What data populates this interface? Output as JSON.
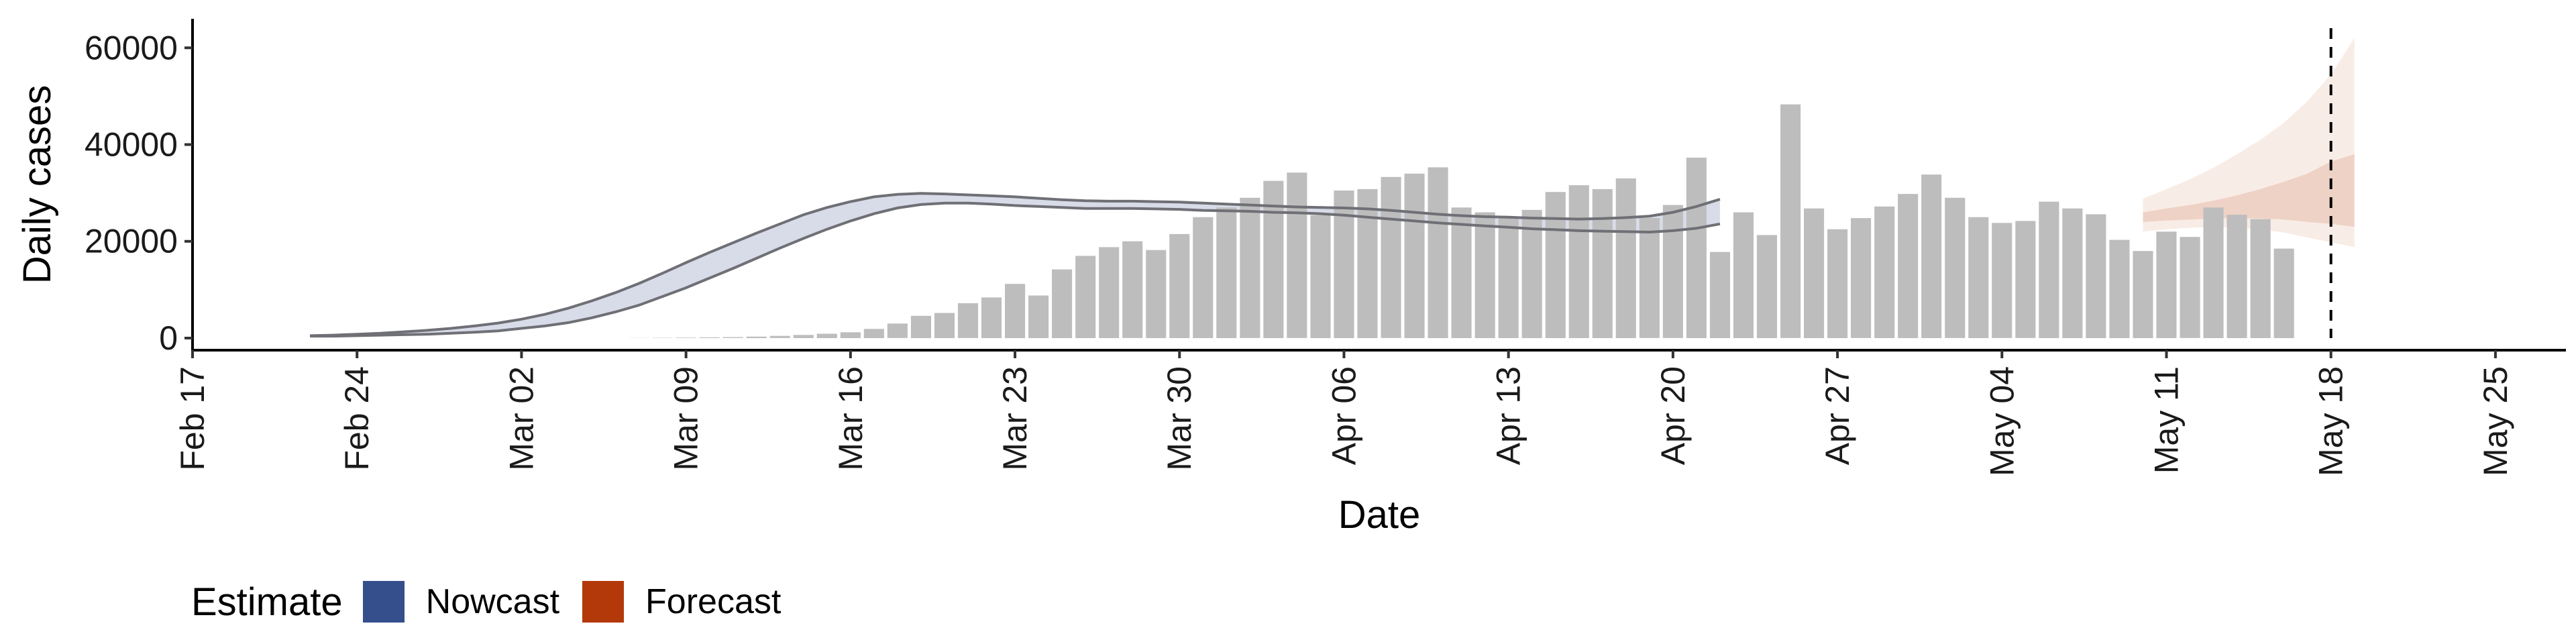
{
  "chart_data": {
    "type": "bar",
    "xlabel": "Date",
    "ylabel": "Daily cases",
    "xlim": [
      "2020-02-17",
      "2020-05-28"
    ],
    "ylim": [
      -2500,
      66000
    ],
    "x_ticks": [
      "Feb 17",
      "Feb 24",
      "Mar 02",
      "Mar 09",
      "Mar 16",
      "Mar 23",
      "Mar 30",
      "Apr 06",
      "Apr 13",
      "Apr 20",
      "Apr 27",
      "May 04",
      "May 11",
      "May 18",
      "May 25"
    ],
    "y_ticks": [
      0,
      20000,
      40000,
      60000
    ],
    "grid": false,
    "bars": {
      "start_date": "2020-03-07",
      "values": [
        30,
        60,
        100,
        150,
        200,
        300,
        450,
        650,
        900,
        1200,
        1900,
        3000,
        4600,
        5200,
        7200,
        8400,
        11200,
        8800,
        14200,
        17000,
        18800,
        20000,
        18200,
        21500,
        25000,
        27000,
        29000,
        32500,
        34200,
        25400,
        30500,
        30800,
        33300,
        34000,
        35300,
        27000,
        26000,
        25000,
        26500,
        30200,
        31600,
        30800,
        33000,
        24800,
        27500,
        37300,
        17800,
        26000,
        21300,
        48300,
        26800,
        22500,
        24800,
        27200,
        29800,
        33800,
        29000,
        25000,
        23800,
        24200,
        28200,
        26800,
        25600,
        20300,
        18000,
        22000,
        20900,
        27000,
        25500,
        24600,
        18500
      ],
      "color": "#bdbdbd"
    },
    "nowcast": {
      "start_date": "2020-02-22",
      "upper": [
        500,
        600,
        800,
        1000,
        1300,
        1600,
        2000,
        2500,
        3100,
        3900,
        4900,
        6200,
        7700,
        9400,
        11300,
        13400,
        15600,
        17700,
        19700,
        21700,
        23600,
        25500,
        27000,
        28200,
        29200,
        29700,
        29900,
        29800,
        29600,
        29400,
        29200,
        28900,
        28600,
        28400,
        28300,
        28300,
        28200,
        28100,
        27900,
        27700,
        27500,
        27300,
        27100,
        27000,
        26900,
        26700,
        26400,
        26000,
        25600,
        25300,
        25100,
        25000,
        24800,
        24700,
        24600,
        24700,
        24900,
        25200,
        26000,
        27200,
        28700
      ],
      "lower": [
        400,
        400,
        500,
        600,
        700,
        800,
        1000,
        1200,
        1500,
        2000,
        2500,
        3200,
        4200,
        5400,
        6800,
        8600,
        10400,
        12400,
        14400,
        16500,
        18600,
        20600,
        22500,
        24200,
        25700,
        26900,
        27600,
        27900,
        27900,
        27700,
        27400,
        27200,
        27000,
        26800,
        26800,
        26800,
        26700,
        26600,
        26400,
        26300,
        26200,
        26000,
        25900,
        25700,
        25400,
        25000,
        24600,
        24200,
        23800,
        23500,
        23200,
        22900,
        22600,
        22400,
        22200,
        22100,
        22000,
        21900,
        22200,
        22700,
        23600
      ],
      "color": "#3a4f8c",
      "line_color": "#6f6f76"
    },
    "forecast": {
      "start_date": "2020-05-10",
      "outer_upper": [
        28800,
        30800,
        32800,
        35200,
        38000,
        41000,
        44500,
        49000,
        54500,
        62000
      ],
      "outer_lower": [
        22000,
        22500,
        22800,
        23000,
        22800,
        22500,
        21800,
        20800,
        19800,
        18800
      ],
      "inner_upper": [
        26000,
        26800,
        27500,
        28400,
        29500,
        30800,
        32300,
        34000,
        36500,
        38000
      ],
      "inner_lower": [
        24000,
        24300,
        24500,
        24700,
        24800,
        24700,
        24500,
        24000,
        23600,
        23000
      ],
      "color": "#b7410e"
    },
    "vline": {
      "date": "2020-05-18",
      "style": "dashed"
    },
    "legend": {
      "title": "Estimate",
      "position": "bottom-left",
      "entries": [
        {
          "label": "Nowcast",
          "color": "#344f8c"
        },
        {
          "label": "Forecast",
          "color": "#b3390a"
        }
      ]
    }
  }
}
